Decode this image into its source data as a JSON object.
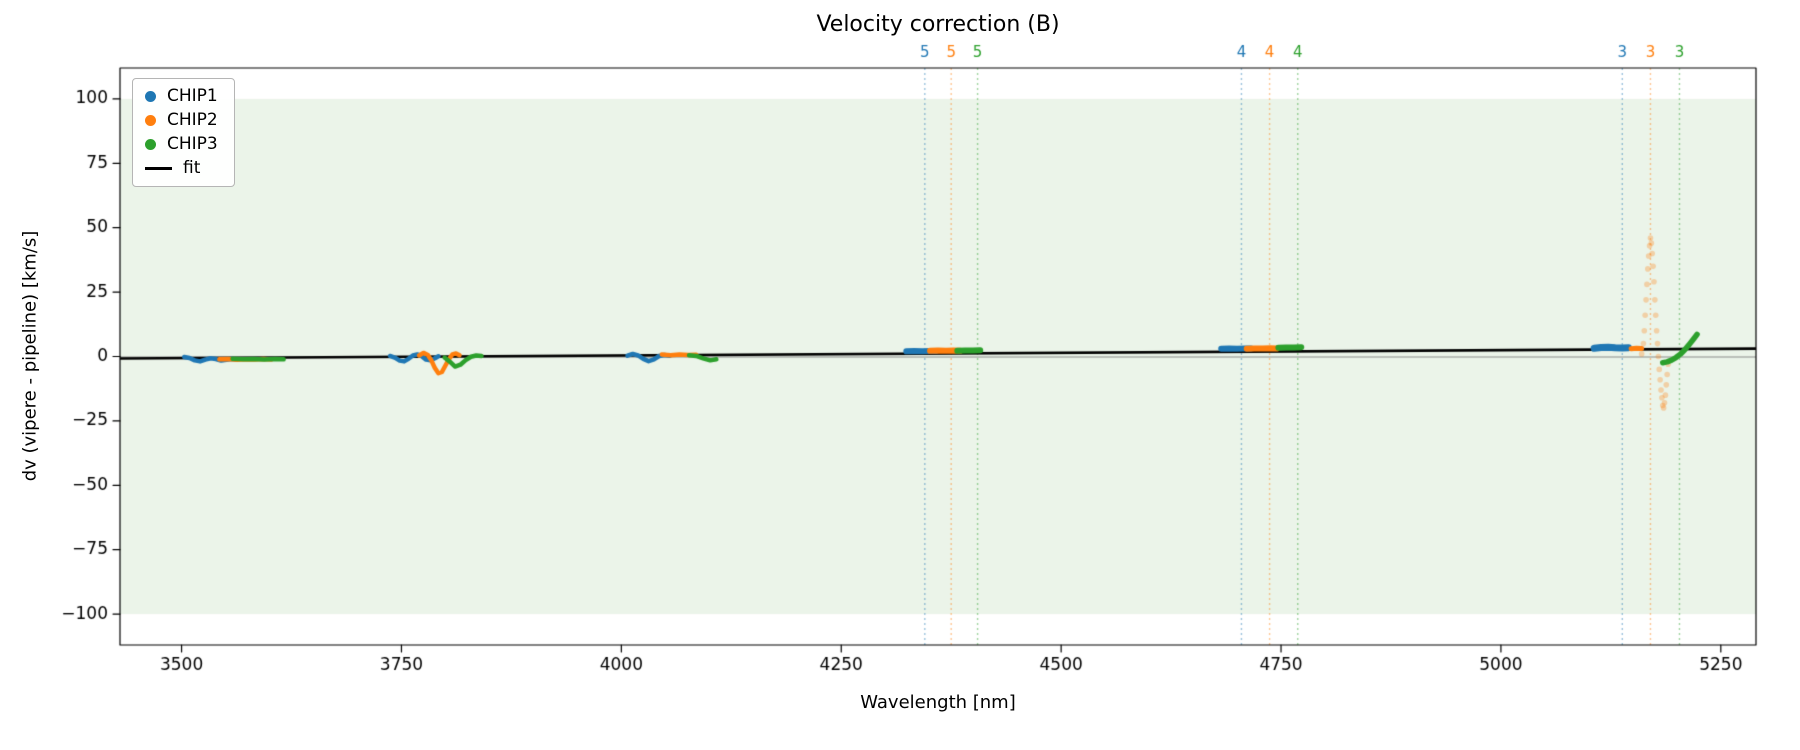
{
  "chart_data": {
    "type": "scatter",
    "title": "Velocity correction (B)",
    "xlabel": "Wavelength [nm]",
    "ylabel": "dv (vipere - pipeline) [km/s]",
    "xlim": [
      3430,
      5290
    ],
    "ylim": [
      -112,
      112
    ],
    "xticks": [
      3500,
      3750,
      4000,
      4250,
      4500,
      4750,
      5000,
      5250
    ],
    "yticks": [
      -100,
      -75,
      -50,
      -25,
      0,
      25,
      50,
      75,
      100
    ],
    "grid": false,
    "legend_position": "upper-left",
    "band": {
      "ymin": -100,
      "ymax": 100,
      "color": "#ebf4e9"
    },
    "zero_line": {
      "y": 0,
      "color": "#8a8a8a"
    },
    "colors": {
      "CHIP1": "#1f77b4",
      "CHIP2": "#ff7f0e",
      "CHIP3": "#2ca02c",
      "fit": "#000000"
    },
    "legend": [
      {
        "label": "CHIP1",
        "color": "#1f77b4",
        "marker": "dot"
      },
      {
        "label": "CHIP2",
        "color": "#ff7f0e",
        "marker": "dot"
      },
      {
        "label": "CHIP3",
        "color": "#2ca02c",
        "marker": "dot"
      },
      {
        "label": "fit",
        "color": "#000000",
        "marker": "line"
      }
    ],
    "vlines": [
      {
        "x": 4345,
        "label": "5",
        "color": "#1f77b4"
      },
      {
        "x": 4375,
        "label": "5",
        "color": "#ff7f0e"
      },
      {
        "x": 4405,
        "label": "5",
        "color": "#2ca02c"
      },
      {
        "x": 4705,
        "label": "4",
        "color": "#1f77b4"
      },
      {
        "x": 4737,
        "label": "4",
        "color": "#ff7f0e"
      },
      {
        "x": 4769,
        "label": "4",
        "color": "#2ca02c"
      },
      {
        "x": 5138,
        "label": "3",
        "color": "#1f77b4"
      },
      {
        "x": 5170,
        "label": "3",
        "color": "#ff7f0e"
      },
      {
        "x": 5203,
        "label": "3",
        "color": "#2ca02c"
      }
    ],
    "fit_line": {
      "x": [
        3430,
        5290
      ],
      "y": [
        -0.75,
        3.05
      ],
      "color": "#000000"
    },
    "series": [
      {
        "name": "CHIP1",
        "clusters": [
          {
            "width": 4.5,
            "points": [
              [
                3503,
                -0.2
              ],
              [
                3509,
                -0.6
              ],
              [
                3515,
                -1.5
              ],
              [
                3521,
                -1.9
              ],
              [
                3527,
                -1.2
              ],
              [
                3533,
                -0.7
              ],
              [
                3539,
                -1.0
              ],
              [
                3545,
                -1.6
              ],
              [
                3551,
                -1.3
              ],
              [
                3557,
                -1.0
              ],
              [
                3562,
                -1.2
              ]
            ]
          },
          {
            "width": 4.5,
            "points": [
              [
                3737,
                0.2
              ],
              [
                3743,
                -0.5
              ],
              [
                3748,
                -1.6
              ],
              [
                3753,
                -1.9
              ],
              [
                3758,
                -0.9
              ],
              [
                3763,
                0.4
              ],
              [
                3768,
                0.8
              ],
              [
                3773,
                0.1
              ],
              [
                3778,
                -1.2
              ],
              [
                3783,
                -1.5
              ],
              [
                3788,
                -0.7
              ],
              [
                3792,
                0.1
              ]
            ]
          },
          {
            "width": 4.5,
            "points": [
              [
                4007,
                0.3
              ],
              [
                4013,
                1.0
              ],
              [
                4019,
                0.4
              ],
              [
                4025,
                -0.9
              ],
              [
                4031,
                -1.8
              ],
              [
                4037,
                -1.1
              ],
              [
                4043,
                0.2
              ],
              [
                4049,
                0.6
              ],
              [
                4055,
                0.3
              ]
            ]
          },
          {
            "width": 6,
            "points": [
              [
                4324,
                2.0
              ],
              [
                4333,
                2.1
              ],
              [
                4342,
                2.0
              ],
              [
                4351,
                2.1
              ],
              [
                4358,
                2.1
              ]
            ]
          },
          {
            "width": 6,
            "points": [
              [
                4682,
                3.0
              ],
              [
                4691,
                3.1
              ],
              [
                4700,
                3.0
              ],
              [
                4709,
                3.1
              ],
              [
                4716,
                3.1
              ]
            ]
          },
          {
            "width": 7,
            "points": [
              [
                5106,
                3.2
              ],
              [
                5114,
                3.5
              ],
              [
                5122,
                3.6
              ],
              [
                5130,
                3.4
              ],
              [
                5138,
                3.3
              ],
              [
                5145,
                3.4
              ]
            ]
          }
        ]
      },
      {
        "name": "CHIP2",
        "clusters": [
          {
            "width": 4.5,
            "points": [
              [
                3543,
                -1.1
              ],
              [
                3553,
                -1.0
              ],
              [
                3563,
                -1.3
              ],
              [
                3573,
                -1.1
              ],
              [
                3583,
                -1.2
              ],
              [
                3593,
                -1.0
              ],
              [
                3602,
                -1.2
              ]
            ]
          },
          {
            "width": 4.5,
            "points": [
              [
                3770,
                0.4
              ],
              [
                3775,
                1.4
              ],
              [
                3780,
                0.6
              ],
              [
                3784,
                -1.5
              ],
              [
                3788,
                -4.5
              ],
              [
                3792,
                -6.5
              ],
              [
                3796,
                -6.0
              ],
              [
                3800,
                -3.5
              ],
              [
                3804,
                -1.0
              ],
              [
                3808,
                0.8
              ],
              [
                3812,
                1.2
              ],
              [
                3816,
                0.5
              ]
            ]
          },
          {
            "width": 4.5,
            "points": [
              [
                4046,
                0.8
              ],
              [
                4056,
                0.5
              ],
              [
                4066,
                0.8
              ],
              [
                4076,
                0.6
              ],
              [
                4085,
                0.7
              ]
            ]
          },
          {
            "width": 6,
            "points": [
              [
                4351,
                2.2
              ],
              [
                4360,
                2.3
              ],
              [
                4369,
                2.2
              ],
              [
                4378,
                2.3
              ],
              [
                4385,
                2.2
              ]
            ]
          },
          {
            "width": 6,
            "points": [
              [
                4711,
                3.0
              ],
              [
                4720,
                3.1
              ],
              [
                4729,
                3.1
              ],
              [
                4738,
                3.2
              ],
              [
                4745,
                3.1
              ]
            ]
          },
          {
            "width": 5,
            "points": [
              [
                5148,
                3.0
              ],
              [
                5154,
                3.2
              ],
              [
                5160,
                3.1
              ]
            ]
          },
          {
            "style": "dots",
            "alpha": 0.3,
            "size": 2.8,
            "points": [
              [
                5160,
                1
              ],
              [
                5162,
                5
              ],
              [
                5163,
                10
              ],
              [
                5164,
                16
              ],
              [
                5165,
                22
              ],
              [
                5166,
                28
              ],
              [
                5167,
                34
              ],
              [
                5168,
                39
              ],
              [
                5169,
                43
              ],
              [
                5170,
                46
              ],
              [
                5171,
                44
              ],
              [
                5172,
                40
              ],
              [
                5173,
                35
              ],
              [
                5174,
                29
              ],
              [
                5175,
                22
              ],
              [
                5176,
                16
              ],
              [
                5177,
                10
              ],
              [
                5178,
                5
              ],
              [
                5179,
                0
              ],
              [
                5180,
                -5
              ],
              [
                5181,
                -9
              ],
              [
                5182,
                -13
              ],
              [
                5183,
                -16
              ],
              [
                5184,
                -19
              ],
              [
                5185,
                -20
              ],
              [
                5186,
                -18
              ],
              [
                5187,
                -15
              ],
              [
                5188,
                -11
              ],
              [
                5189,
                -7
              ],
              [
                5190,
                -3
              ]
            ]
          }
        ]
      },
      {
        "name": "CHIP3",
        "clusters": [
          {
            "width": 4.5,
            "points": [
              [
                3558,
                -0.9
              ],
              [
                3570,
                -1.1
              ],
              [
                3582,
                -1.0
              ],
              [
                3594,
                -1.2
              ],
              [
                3606,
                -1.0
              ],
              [
                3616,
                -1.1
              ]
            ]
          },
          {
            "width": 4.5,
            "points": [
              [
                3799,
                -0.4
              ],
              [
                3805,
                -2.0
              ],
              [
                3811,
                -3.9
              ],
              [
                3817,
                -3.2
              ],
              [
                3823,
                -1.4
              ],
              [
                3829,
                -0.1
              ],
              [
                3835,
                0.4
              ],
              [
                3841,
                0.2
              ]
            ]
          },
          {
            "width": 4.5,
            "points": [
              [
                4077,
                0.5
              ],
              [
                4085,
                0.2
              ],
              [
                4093,
                -0.7
              ],
              [
                4101,
                -1.5
              ],
              [
                4108,
                -1.1
              ]
            ]
          },
          {
            "width": 6,
            "points": [
              [
                4382,
                2.2
              ],
              [
                4391,
                2.3
              ],
              [
                4400,
                2.3
              ],
              [
                4408,
                2.4
              ]
            ]
          },
          {
            "width": 6,
            "points": [
              [
                4747,
                3.4
              ],
              [
                4756,
                3.5
              ],
              [
                4765,
                3.5
              ],
              [
                4773,
                3.6
              ]
            ]
          },
          {
            "width": 5.5,
            "points": [
              [
                5184,
                -2.4
              ],
              [
                5189,
                -2.1
              ],
              [
                5194,
                -1.4
              ],
              [
                5199,
                -0.4
              ],
              [
                5204,
                0.9
              ],
              [
                5209,
                2.6
              ],
              [
                5214,
                4.6
              ],
              [
                5219,
                6.8
              ],
              [
                5223,
                8.6
              ]
            ]
          }
        ]
      }
    ]
  }
}
